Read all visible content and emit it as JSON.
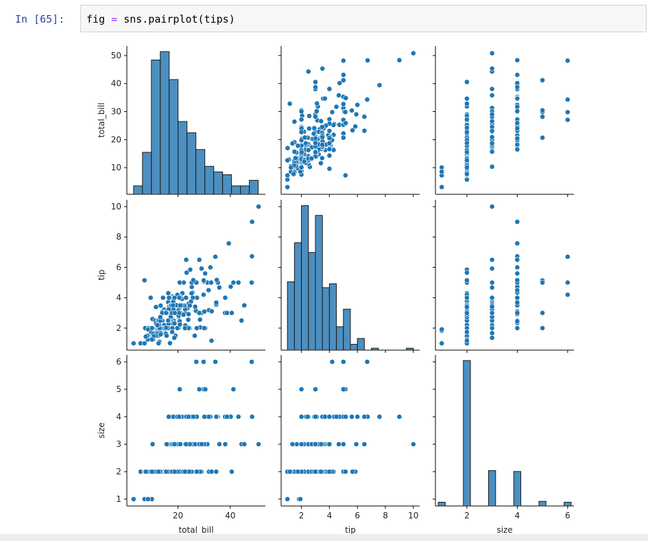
{
  "cell": {
    "prompt": "In  [65]:",
    "code_var": "fig",
    "code_op": "=",
    "code_call": "sns.pairplot(tips)"
  },
  "colors": {
    "point": "#1f77b4",
    "bar": "#4c8fc0",
    "bar_edge": "#1a1a1a",
    "prompt": "#303f9f",
    "code_eq": "#aa22ff"
  },
  "chart_data": {
    "type": "pairplot",
    "variables": [
      "total_bill",
      "tip",
      "size"
    ],
    "axis_labels": {
      "x": [
        "total_bill",
        "tip",
        "size"
      ],
      "y": [
        "total_bill",
        "tip",
        "size"
      ]
    },
    "ranges": {
      "total_bill": [
        0.5,
        53.4
      ],
      "tip": [
        0.55,
        10.45
      ],
      "size": [
        0.75,
        6.25
      ]
    },
    "ticks": {
      "total_bill_y": [
        10,
        20,
        30,
        40,
        50
      ],
      "tip_y": [
        2,
        4,
        6,
        8,
        10
      ],
      "size_y": [
        1,
        2,
        3,
        4,
        5,
        6
      ],
      "total_bill_x": [
        20,
        40
      ],
      "tip_x": [
        2,
        4,
        6,
        8,
        10
      ],
      "size_x": [
        2,
        4,
        6
      ]
    },
    "histograms": {
      "total_bill": {
        "bins_start": 3.07,
        "bin_width": 3.4,
        "counts": [
          3,
          15,
          48,
          51,
          41,
          26,
          22,
          16,
          10,
          8,
          7,
          3,
          3,
          5
        ],
        "ymax": 53
      },
      "tip": {
        "bins_start": 1.0,
        "bin_width": 0.5,
        "counts": [
          35,
          55,
          74,
          50,
          69,
          32,
          34,
          12,
          21,
          3,
          6,
          0,
          1,
          0,
          0,
          0,
          0,
          1,
          0
        ],
        "ymax": 77
      },
      "size": {
        "values": [
          1,
          2,
          3,
          4,
          5,
          6
        ],
        "counts": [
          4,
          156,
          38,
          37,
          5,
          4
        ],
        "ymax": 162
      }
    },
    "points": [
      [
        16.99,
        1.01,
        2
      ],
      [
        10.34,
        1.66,
        3
      ],
      [
        21.01,
        3.5,
        3
      ],
      [
        23.68,
        3.31,
        2
      ],
      [
        24.59,
        3.61,
        4
      ],
      [
        25.29,
        4.71,
        4
      ],
      [
        8.77,
        2.0,
        2
      ],
      [
        26.88,
        3.12,
        4
      ],
      [
        15.04,
        1.96,
        2
      ],
      [
        14.78,
        3.23,
        2
      ],
      [
        10.27,
        1.71,
        2
      ],
      [
        35.26,
        5.0,
        4
      ],
      [
        15.42,
        1.57,
        2
      ],
      [
        18.43,
        3.0,
        4
      ],
      [
        14.83,
        3.02,
        2
      ],
      [
        21.58,
        3.92,
        2
      ],
      [
        10.33,
        1.67,
        3
      ],
      [
        16.29,
        3.71,
        3
      ],
      [
        16.97,
        3.5,
        3
      ],
      [
        20.65,
        3.35,
        3
      ],
      [
        17.92,
        4.08,
        2
      ],
      [
        20.29,
        2.75,
        2
      ],
      [
        15.77,
        2.23,
        2
      ],
      [
        39.42,
        7.58,
        4
      ],
      [
        19.82,
        3.18,
        2
      ],
      [
        17.81,
        2.34,
        4
      ],
      [
        13.37,
        2.0,
        2
      ],
      [
        12.69,
        2.0,
        2
      ],
      [
        21.7,
        4.3,
        2
      ],
      [
        19.65,
        3.0,
        2
      ],
      [
        9.55,
        1.45,
        2
      ],
      [
        18.35,
        2.5,
        4
      ],
      [
        15.06,
        3.0,
        2
      ],
      [
        20.69,
        2.45,
        4
      ],
      [
        17.78,
        3.27,
        2
      ],
      [
        24.06,
        3.6,
        3
      ],
      [
        16.31,
        2.0,
        3
      ],
      [
        16.93,
        3.07,
        3
      ],
      [
        18.69,
        2.31,
        3
      ],
      [
        31.27,
        5.0,
        3
      ],
      [
        16.04,
        2.24,
        3
      ],
      [
        17.46,
        2.54,
        2
      ],
      [
        13.94,
        3.06,
        2
      ],
      [
        9.68,
        1.32,
        2
      ],
      [
        30.4,
        5.6,
        4
      ],
      [
        18.29,
        3.0,
        2
      ],
      [
        22.23,
        5.0,
        2
      ],
      [
        32.4,
        6.0,
        4
      ],
      [
        28.55,
        2.05,
        3
      ],
      [
        18.04,
        3.0,
        2
      ],
      [
        12.54,
        2.5,
        2
      ],
      [
        10.29,
        2.6,
        2
      ],
      [
        34.81,
        5.2,
        4
      ],
      [
        9.94,
        1.56,
        2
      ],
      [
        25.56,
        4.34,
        4
      ],
      [
        19.49,
        3.51,
        2
      ],
      [
        38.01,
        3.0,
        4
      ],
      [
        26.41,
        1.5,
        2
      ],
      [
        11.24,
        1.76,
        2
      ],
      [
        48.27,
        6.73,
        4
      ],
      [
        20.29,
        3.21,
        2
      ],
      [
        13.81,
        2.0,
        2
      ],
      [
        11.02,
        1.98,
        2
      ],
      [
        18.29,
        3.76,
        4
      ],
      [
        17.59,
        2.64,
        3
      ],
      [
        20.08,
        3.15,
        3
      ],
      [
        16.45,
        2.47,
        2
      ],
      [
        3.07,
        1.0,
        1
      ],
      [
        20.23,
        2.01,
        2
      ],
      [
        15.01,
        2.09,
        2
      ],
      [
        12.02,
        1.97,
        2
      ],
      [
        17.07,
        3.0,
        3
      ],
      [
        26.86,
        3.14,
        2
      ],
      [
        25.28,
        5.0,
        2
      ],
      [
        14.73,
        2.2,
        2
      ],
      [
        10.51,
        1.25,
        2
      ],
      [
        17.92,
        3.08,
        2
      ],
      [
        27.2,
        4.0,
        4
      ],
      [
        22.76,
        3.0,
        2
      ],
      [
        17.29,
        2.71,
        2
      ],
      [
        19.44,
        3.0,
        2
      ],
      [
        16.66,
        3.4,
        2
      ],
      [
        10.07,
        1.83,
        1
      ],
      [
        32.68,
        5.0,
        2
      ],
      [
        15.98,
        2.03,
        2
      ],
      [
        34.83,
        5.17,
        4
      ],
      [
        13.03,
        2.0,
        2
      ],
      [
        18.28,
        4.0,
        2
      ],
      [
        24.71,
        5.85,
        2
      ],
      [
        21.16,
        3.0,
        2
      ],
      [
        28.97,
        3.0,
        2
      ],
      [
        22.49,
        3.5,
        2
      ],
      [
        5.75,
        1.0,
        2
      ],
      [
        16.32,
        4.3,
        2
      ],
      [
        22.75,
        3.25,
        2
      ],
      [
        40.17,
        4.73,
        4
      ],
      [
        27.28,
        4.0,
        2
      ],
      [
        12.03,
        1.5,
        2
      ],
      [
        21.01,
        3.0,
        2
      ],
      [
        12.46,
        1.5,
        2
      ],
      [
        11.35,
        2.5,
        2
      ],
      [
        15.38,
        3.0,
        2
      ],
      [
        44.3,
        2.5,
        3
      ],
      [
        22.42,
        3.48,
        2
      ],
      [
        20.92,
        4.08,
        2
      ],
      [
        15.36,
        1.64,
        2
      ],
      [
        20.49,
        4.06,
        2
      ],
      [
        25.21,
        4.29,
        2
      ],
      [
        18.24,
        3.76,
        2
      ],
      [
        14.31,
        4.0,
        2
      ],
      [
        14.0,
        3.0,
        2
      ],
      [
        7.25,
        1.0,
        1
      ],
      [
        38.07,
        4.0,
        3
      ],
      [
        23.95,
        2.55,
        2
      ],
      [
        25.71,
        4.0,
        3
      ],
      [
        17.31,
        3.5,
        2
      ],
      [
        29.93,
        5.07,
        4
      ],
      [
        10.65,
        1.5,
        2
      ],
      [
        12.43,
        1.8,
        2
      ],
      [
        24.08,
        2.92,
        4
      ],
      [
        11.69,
        2.31,
        2
      ],
      [
        13.42,
        1.68,
        2
      ],
      [
        14.26,
        2.5,
        2
      ],
      [
        15.95,
        2.0,
        2
      ],
      [
        12.48,
        2.52,
        2
      ],
      [
        29.8,
        4.2,
        6
      ],
      [
        8.52,
        1.48,
        2
      ],
      [
        14.52,
        2.0,
        2
      ],
      [
        11.38,
        2.0,
        2
      ],
      [
        22.82,
        2.18,
        3
      ],
      [
        19.08,
        1.5,
        2
      ],
      [
        20.27,
        2.83,
        2
      ],
      [
        11.17,
        1.5,
        2
      ],
      [
        12.26,
        2.0,
        2
      ],
      [
        18.26,
        3.25,
        2
      ],
      [
        8.51,
        1.25,
        2
      ],
      [
        10.33,
        2.0,
        2
      ],
      [
        14.15,
        2.0,
        2
      ],
      [
        16.0,
        2.0,
        2
      ],
      [
        13.16,
        2.75,
        2
      ],
      [
        17.47,
        3.5,
        2
      ],
      [
        34.3,
        6.7,
        6
      ],
      [
        41.19,
        5.0,
        5
      ],
      [
        27.05,
        5.0,
        6
      ],
      [
        16.43,
        2.3,
        2
      ],
      [
        8.35,
        1.5,
        2
      ],
      [
        18.64,
        1.36,
        3
      ],
      [
        11.87,
        1.63,
        2
      ],
      [
        9.78,
        1.73,
        2
      ],
      [
        7.51,
        2.0,
        2
      ],
      [
        14.07,
        2.5,
        2
      ],
      [
        13.13,
        2.0,
        2
      ],
      [
        17.26,
        2.74,
        3
      ],
      [
        24.55,
        2.0,
        4
      ],
      [
        19.77,
        2.0,
        4
      ],
      [
        29.85,
        5.14,
        5
      ],
      [
        48.17,
        5.0,
        6
      ],
      [
        25.0,
        3.75,
        4
      ],
      [
        13.39,
        2.61,
        2
      ],
      [
        16.49,
        2.0,
        4
      ],
      [
        21.5,
        3.5,
        4
      ],
      [
        12.66,
        2.5,
        2
      ],
      [
        16.21,
        2.0,
        3
      ],
      [
        13.81,
        2.0,
        2
      ],
      [
        17.51,
        3.0,
        2
      ],
      [
        24.52,
        3.48,
        3
      ],
      [
        20.76,
        2.24,
        2
      ],
      [
        31.71,
        4.5,
        4
      ],
      [
        10.59,
        1.61,
        2
      ],
      [
        10.63,
        2.0,
        2
      ],
      [
        50.81,
        10.0,
        3
      ],
      [
        15.81,
        3.16,
        2
      ],
      [
        7.25,
        5.15,
        2
      ],
      [
        31.85,
        3.18,
        2
      ],
      [
        16.82,
        4.0,
        2
      ],
      [
        32.9,
        3.11,
        2
      ],
      [
        17.89,
        2.0,
        2
      ],
      [
        14.48,
        2.0,
        2
      ],
      [
        9.6,
        4.0,
        2
      ],
      [
        34.63,
        3.55,
        2
      ],
      [
        34.65,
        3.68,
        4
      ],
      [
        23.33,
        5.65,
        2
      ],
      [
        45.35,
        3.5,
        3
      ],
      [
        23.17,
        6.5,
        4
      ],
      [
        40.55,
        3.0,
        2
      ],
      [
        20.69,
        5.0,
        5
      ],
      [
        20.9,
        3.5,
        3
      ],
      [
        30.46,
        2.0,
        5
      ],
      [
        18.15,
        3.5,
        3
      ],
      [
        23.1,
        4.0,
        3
      ],
      [
        15.69,
        1.5,
        2
      ],
      [
        19.81,
        4.19,
        2
      ],
      [
        28.44,
        2.56,
        2
      ],
      [
        15.48,
        2.02,
        2
      ],
      [
        16.58,
        4.0,
        2
      ],
      [
        7.56,
        1.44,
        2
      ],
      [
        10.34,
        2.0,
        2
      ],
      [
        43.11,
        5.0,
        4
      ],
      [
        13.0,
        2.0,
        2
      ],
      [
        13.51,
        2.0,
        2
      ],
      [
        18.71,
        4.0,
        3
      ],
      [
        12.74,
        2.01,
        2
      ],
      [
        13.0,
        2.0,
        2
      ],
      [
        16.4,
        2.5,
        2
      ],
      [
        20.53,
        4.0,
        4
      ],
      [
        16.47,
        3.23,
        3
      ],
      [
        26.59,
        3.41,
        3
      ],
      [
        38.73,
        3.0,
        4
      ],
      [
        24.27,
        2.03,
        2
      ],
      [
        12.76,
        2.23,
        2
      ],
      [
        30.06,
        2.0,
        3
      ],
      [
        25.89,
        5.16,
        4
      ],
      [
        48.33,
        9.0,
        4
      ],
      [
        13.27,
        2.5,
        2
      ],
      [
        28.17,
        6.5,
        3
      ],
      [
        12.9,
        1.1,
        2
      ],
      [
        28.15,
        3.0,
        5
      ],
      [
        11.59,
        1.5,
        2
      ],
      [
        7.74,
        1.44,
        2
      ],
      [
        30.14,
        3.09,
        4
      ],
      [
        12.16,
        2.2,
        2
      ],
      [
        13.42,
        3.48,
        2
      ],
      [
        8.58,
        1.92,
        1
      ],
      [
        15.98,
        3.0,
        3
      ],
      [
        13.42,
        1.58,
        2
      ],
      [
        16.27,
        2.5,
        2
      ],
      [
        10.09,
        2.0,
        2
      ],
      [
        20.45,
        3.0,
        4
      ],
      [
        13.28,
        2.72,
        2
      ],
      [
        22.12,
        2.88,
        2
      ],
      [
        24.01,
        2.0,
        4
      ],
      [
        15.69,
        3.0,
        3
      ],
      [
        11.61,
        3.39,
        2
      ],
      [
        10.77,
        1.47,
        2
      ],
      [
        15.53,
        3.0,
        2
      ],
      [
        10.07,
        1.25,
        2
      ],
      [
        12.6,
        1.0,
        2
      ],
      [
        32.83,
        1.17,
        2
      ],
      [
        35.83,
        4.67,
        3
      ],
      [
        29.03,
        5.92,
        3
      ],
      [
        27.18,
        2.0,
        2
      ],
      [
        22.67,
        2.0,
        2
      ],
      [
        17.82,
        1.75,
        2
      ],
      [
        18.78,
        3.0,
        2
      ]
    ]
  }
}
